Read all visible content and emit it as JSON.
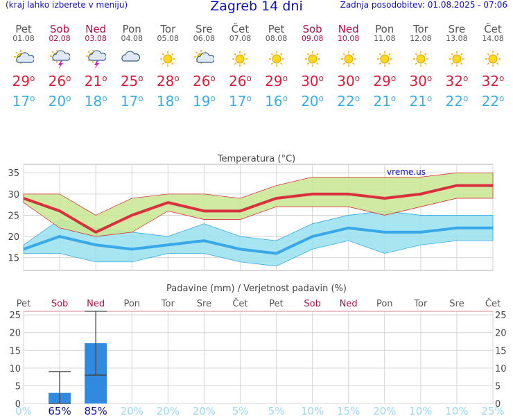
{
  "header": {
    "left": "(kraj lahko izberete v meniju)",
    "title": "Zagreb 14 dni",
    "right": "Zadnja posodobitev: 01.08.2025 - 07:06"
  },
  "days": [
    {
      "name": "Pet",
      "date": "01.08",
      "weekend": false,
      "icon": "sun-cloud-icon",
      "tmax": "29",
      "tmin": "17"
    },
    {
      "name": "Sob",
      "date": "02.08",
      "weekend": true,
      "icon": "sun-storm-icon",
      "tmax": "26",
      "tmin": "20"
    },
    {
      "name": "Ned",
      "date": "03.08",
      "weekend": true,
      "icon": "sun-storm-icon",
      "tmax": "21",
      "tmin": "18"
    },
    {
      "name": "Pon",
      "date": "04.08",
      "weekend": false,
      "icon": "cloud-icon",
      "tmax": "25",
      "tmin": "17"
    },
    {
      "name": "Tor",
      "date": "05.08",
      "weekend": false,
      "icon": "sun-icon",
      "tmax": "28",
      "tmin": "18"
    },
    {
      "name": "Sre",
      "date": "06.08",
      "weekend": false,
      "icon": "sun-cloud-icon",
      "tmax": "26",
      "tmin": "19"
    },
    {
      "name": "Čet",
      "date": "07.08",
      "weekend": false,
      "icon": "sun-icon",
      "tmax": "26",
      "tmin": "17"
    },
    {
      "name": "Pet",
      "date": "08.08",
      "weekend": false,
      "icon": "sun-icon",
      "tmax": "29",
      "tmin": "16"
    },
    {
      "name": "Sob",
      "date": "09.08",
      "weekend": true,
      "icon": "sun-icon",
      "tmax": "30",
      "tmin": "20"
    },
    {
      "name": "Ned",
      "date": "10.08",
      "weekend": true,
      "icon": "sun-icon",
      "tmax": "30",
      "tmin": "22"
    },
    {
      "name": "Pon",
      "date": "11.08",
      "weekend": false,
      "icon": "sun-icon",
      "tmax": "29",
      "tmin": "21"
    },
    {
      "name": "Tor",
      "date": "12.08",
      "weekend": false,
      "icon": "sun-icon",
      "tmax": "30",
      "tmin": "21"
    },
    {
      "name": "Sre",
      "date": "13.08",
      "weekend": false,
      "icon": "sun-icon",
      "tmax": "32",
      "tmin": "22"
    },
    {
      "name": "Čet",
      "date": "14.08",
      "weekend": false,
      "icon": "sun-icon",
      "tmax": "32",
      "tmin": "22"
    }
  ],
  "chart_data": [
    {
      "type": "line",
      "title": "Temperatura (°C)",
      "watermark": "vreme.us",
      "ylim": [
        12,
        37
      ],
      "yticks": [
        15,
        20,
        25,
        30,
        35
      ],
      "grid": true,
      "max_series": {
        "values": [
          29,
          26,
          21,
          25,
          28,
          26,
          26,
          29,
          30,
          30,
          29,
          30,
          32,
          32
        ],
        "upper": [
          30,
          30,
          25,
          29,
          30,
          30,
          29,
          32,
          34,
          34,
          34,
          34,
          35,
          35
        ],
        "lower": [
          28,
          22,
          20,
          21,
          26,
          24,
          24,
          27,
          27,
          27,
          25,
          27,
          29,
          29
        ],
        "color": "#d8303c",
        "band_color": "#c8e890"
      },
      "min_series": {
        "values": [
          17,
          20,
          18,
          17,
          18,
          19,
          17,
          16,
          20,
          22,
          21,
          21,
          22,
          22
        ],
        "upper": [
          18,
          24,
          22,
          21,
          20,
          23,
          20,
          19,
          23,
          25,
          26,
          25,
          25,
          25
        ],
        "lower": [
          16,
          16,
          14,
          14,
          16,
          16,
          14,
          13,
          17,
          19,
          16,
          18,
          19,
          19
        ],
        "color": "#38a8e8",
        "band_color": "#98e0ee"
      }
    },
    {
      "type": "bar",
      "title": "Padavine (mm) / Verjetnost padavin (%)",
      "ylim": [
        0,
        26
      ],
      "yticks": [
        0,
        5,
        10,
        15,
        20,
        25
      ],
      "grid": true,
      "values": [
        0,
        3,
        17,
        0,
        0,
        0,
        0,
        0,
        0,
        0,
        0,
        0,
        0,
        0
      ],
      "error_high": [
        0,
        9,
        26,
        0,
        0,
        0,
        0,
        0,
        0,
        0,
        0,
        0,
        0,
        0
      ],
      "error_low": [
        0,
        0,
        8,
        0,
        0,
        0,
        0,
        0,
        0,
        0,
        0,
        0,
        0,
        0
      ],
      "probability": [
        "0%",
        "65%",
        "85%",
        "20%",
        "20%",
        "20%",
        "5%",
        "5%",
        "10%",
        "15%",
        "20%",
        "10%",
        "10%",
        "25%"
      ],
      "prob_strong": [
        false,
        true,
        true,
        false,
        false,
        false,
        false,
        false,
        false,
        false,
        false,
        false,
        false,
        false
      ],
      "bar_color": "#2f8ae0"
    }
  ],
  "colors": {
    "weekend": "#b0104a",
    "weekday": "#555555",
    "max_temp": "#d8203a",
    "min_temp": "#38aee8",
    "header": "#1010c0",
    "prob_strong": "#1010a0",
    "prob_weak": "#9ad8f4"
  }
}
